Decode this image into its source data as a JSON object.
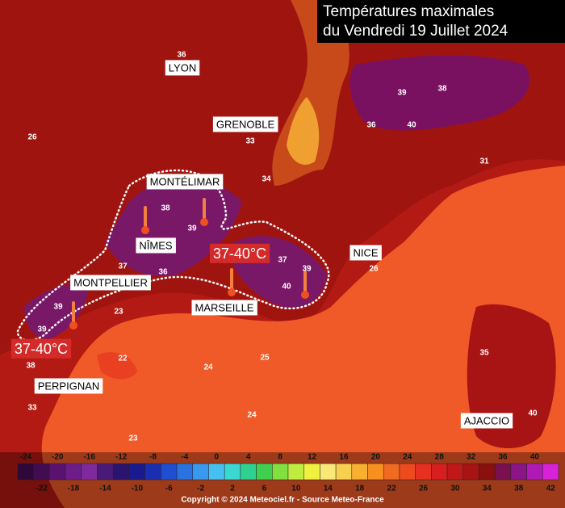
{
  "title": [
    "Températures maximales",
    "du Vendredi 19 Juillet 2024"
  ],
  "cities": [
    "LYON",
    "GRENOBLE",
    "MONTÉLIMAR",
    "NÎMES",
    "MONTPELLIER",
    "MARSEILLE",
    "NICE",
    "PERPIGNAN",
    "AJACCIO"
  ],
  "heat_zones": [
    "37-40°C",
    "37-40°C"
  ],
  "temperature_labels": [
    40,
    36,
    38,
    39,
    40,
    39,
    37,
    38,
    39,
    39,
    37,
    36,
    39,
    39,
    23,
    22,
    24,
    25,
    24,
    23,
    38,
    26,
    35,
    40,
    36,
    33,
    31,
    34,
    26,
    33
  ],
  "colorbar": {
    "ticks": [
      -24,
      -22,
      -20,
      -18,
      -16,
      -14,
      -12,
      -10,
      -8,
      -6,
      -4,
      -2,
      0,
      2,
      4,
      6,
      8,
      10,
      12,
      14,
      16,
      18,
      20,
      22,
      24,
      26,
      28,
      30,
      32,
      34,
      36,
      38,
      40,
      42
    ],
    "colors": [
      "#2e0838",
      "#420c52",
      "#5a1270",
      "#6e1c8a",
      "#7e2a9c",
      "#4a1a78",
      "#2a1470",
      "#1a1a90",
      "#1a2fb0",
      "#1e4fd0",
      "#2a72e0",
      "#3a98ee",
      "#46c0f0",
      "#3ad8d0",
      "#30d090",
      "#40d050",
      "#80e040",
      "#c0ec40",
      "#f0f040",
      "#f8e878",
      "#f8d050",
      "#f8b030",
      "#f89020",
      "#f06a20",
      "#ee4a20",
      "#e83020",
      "#d81e1e",
      "#c01818",
      "#a81414",
      "#8a1010",
      "#7a1050",
      "#8a1488",
      "#b01ab4",
      "#d822d8"
    ]
  },
  "credit": "Copyright © 2024 Meteociel.fr - Source Meteo-France"
}
